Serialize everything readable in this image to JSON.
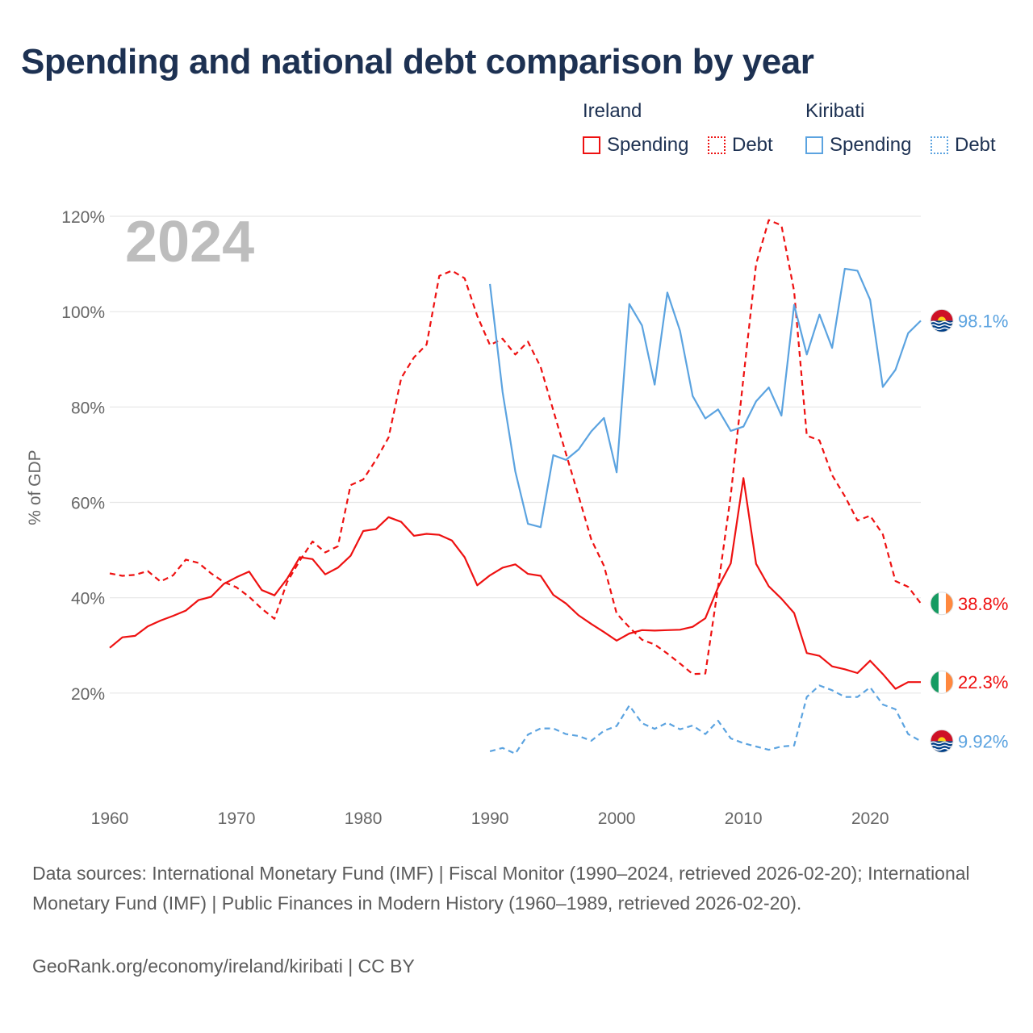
{
  "title": "Spending and national debt comparison by year",
  "legend": {
    "groups": [
      {
        "country": "Ireland",
        "items": [
          {
            "label": "Spending",
            "style": "solid",
            "color": "#ee1111"
          },
          {
            "label": "Debt",
            "style": "dotted",
            "color": "#ee1111"
          }
        ]
      },
      {
        "country": "Kiribati",
        "items": [
          {
            "label": "Spending",
            "style": "solid",
            "color": "#5ba3e0"
          },
          {
            "label": "Debt",
            "style": "dotted",
            "color": "#5ba3e0"
          }
        ]
      }
    ]
  },
  "sources": "Data sources: International Monetary Fund (IMF) | Fiscal Monitor (1990–2024, retrieved 2026-02-20); International Monetary Fund (IMF) | Public Finances in Modern History (1960–1989, retrieved 2026-02-20).",
  "credit": "GeoRank.org/economy/ireland/kiribati | CC BY",
  "colors": {
    "ireland": "#ee1111",
    "kiribati": "#5ba3e0",
    "grid": "#e6e6e6",
    "axis_text": "#666666"
  },
  "chart_data": {
    "type": "line",
    "title": "Spending and national debt comparison by year",
    "year_label": "2024",
    "ylabel": "% of GDP",
    "xlabel": "",
    "xlim": [
      1960,
      2024
    ],
    "ylim": [
      0,
      120
    ],
    "xticks": [
      1960,
      1970,
      1980,
      1990,
      2000,
      2010,
      2020
    ],
    "yticks": [
      20,
      40,
      60,
      80,
      100,
      120
    ],
    "ytick_labels": [
      "20%",
      "40%",
      "60%",
      "80%",
      "100%",
      "120%"
    ],
    "grid": true,
    "series": [
      {
        "name": "Ireland Spending",
        "country": "Ireland",
        "metric": "Spending",
        "color": "#ee1111",
        "dash": "solid",
        "end_label": "22.3%",
        "flag": "ireland",
        "x": [
          1960,
          1961,
          1962,
          1963,
          1964,
          1965,
          1966,
          1967,
          1968,
          1969,
          1970,
          1971,
          1972,
          1973,
          1974,
          1975,
          1976,
          1977,
          1978,
          1979,
          1980,
          1981,
          1982,
          1983,
          1984,
          1985,
          1986,
          1987,
          1988,
          1989,
          1990,
          1991,
          1992,
          1993,
          1994,
          1995,
          1996,
          1997,
          1998,
          1999,
          2000,
          2001,
          2002,
          2003,
          2004,
          2005,
          2006,
          2007,
          2008,
          2009,
          2010,
          2011,
          2012,
          2013,
          2014,
          2015,
          2016,
          2017,
          2018,
          2019,
          2020,
          2021,
          2022,
          2023,
          2024
        ],
        "values": [
          29.5,
          31.7,
          32.0,
          34.0,
          35.2,
          36.2,
          37.3,
          39.5,
          40.2,
          42.9,
          44.3,
          45.5,
          41.6,
          40.5,
          44.0,
          48.5,
          48.1,
          44.9,
          46.3,
          48.8,
          54.0,
          54.4,
          56.9,
          55.9,
          53.0,
          53.4,
          53.2,
          52.0,
          48.5,
          42.6,
          44.7,
          46.3,
          47.0,
          45.0,
          44.6,
          40.6,
          38.8,
          36.3,
          34.5,
          32.8,
          31.0,
          32.5,
          33.2,
          33.1,
          33.2,
          33.3,
          33.9,
          35.7,
          42.2,
          47.2,
          65.1,
          47.1,
          42.4,
          39.8,
          36.8,
          28.4,
          27.8,
          25.6,
          25.0,
          24.2,
          26.8,
          24.0,
          20.9,
          22.3,
          22.3
        ]
      },
      {
        "name": "Ireland Debt",
        "country": "Ireland",
        "metric": "Debt",
        "color": "#ee1111",
        "dash": "dashed",
        "end_label": "38.8%",
        "flag": "ireland",
        "x": [
          1960,
          1961,
          1962,
          1963,
          1964,
          1965,
          1966,
          1967,
          1968,
          1969,
          1970,
          1971,
          1972,
          1973,
          1974,
          1975,
          1976,
          1977,
          1978,
          1979,
          1980,
          1981,
          1982,
          1983,
          1984,
          1985,
          1986,
          1987,
          1988,
          1989,
          1990,
          1991,
          1992,
          1993,
          1994,
          1995,
          1996,
          1997,
          1998,
          1999,
          2000,
          2001,
          2002,
          2003,
          2004,
          2005,
          2006,
          2007,
          2008,
          2009,
          2010,
          2011,
          2012,
          2013,
          2014,
          2015,
          2016,
          2017,
          2018,
          2019,
          2020,
          2021,
          2022,
          2023,
          2024
        ],
        "values": [
          45.1,
          44.6,
          44.8,
          45.6,
          43.4,
          44.7,
          48.0,
          47.3,
          45.1,
          43.3,
          42.2,
          40.2,
          37.7,
          35.6,
          43.3,
          47.8,
          51.8,
          49.5,
          50.8,
          63.6,
          64.8,
          68.9,
          73.6,
          86.1,
          90.4,
          93.1,
          107.5,
          108.6,
          107.0,
          99.1,
          93.0,
          94.3,
          91.0,
          93.7,
          88.4,
          79.3,
          70.2,
          61.3,
          52.2,
          46.7,
          36.7,
          33.8,
          31.2,
          30.2,
          28.3,
          26.2,
          24.0,
          24.1,
          42.3,
          61.5,
          86.1,
          110.0,
          119.2,
          118.1,
          104.3,
          74.0,
          73.0,
          65.7,
          61.3,
          56.2,
          57.2,
          53.3,
          43.5,
          42.3,
          38.8
        ]
      },
      {
        "name": "Kiribati Spending",
        "country": "Kiribati",
        "metric": "Spending",
        "color": "#5ba3e0",
        "dash": "solid",
        "end_label": "98.1%",
        "flag": "kiribati",
        "x": [
          1990,
          1991,
          1992,
          1993,
          1994,
          1995,
          1996,
          1997,
          1998,
          1999,
          2000,
          2001,
          2002,
          2003,
          2004,
          2005,
          2006,
          2007,
          2008,
          2009,
          2010,
          2011,
          2012,
          2013,
          2014,
          2015,
          2016,
          2017,
          2018,
          2019,
          2020,
          2021,
          2022,
          2023,
          2024
        ],
        "values": [
          105.8,
          83.1,
          66.5,
          55.5,
          54.8,
          69.9,
          68.9,
          71.1,
          74.9,
          77.7,
          66.3,
          101.6,
          97.1,
          84.7,
          104.0,
          96.0,
          82.3,
          77.6,
          79.5,
          75.0,
          75.9,
          81.2,
          84.1,
          78.2,
          101.4,
          91.0,
          99.4,
          92.4,
          109.0,
          108.6,
          102.5,
          84.2,
          87.8,
          95.5,
          98.1
        ]
      },
      {
        "name": "Kiribati Debt",
        "country": "Kiribati",
        "metric": "Debt",
        "color": "#5ba3e0",
        "dash": "dashed",
        "end_label": "9.92%",
        "flag": "kiribati",
        "x": [
          1990,
          1991,
          1992,
          1993,
          1994,
          1995,
          1996,
          1997,
          1998,
          1999,
          2000,
          2001,
          2002,
          2003,
          2004,
          2005,
          2006,
          2007,
          2008,
          2009,
          2010,
          2011,
          2012,
          2013,
          2014,
          2015,
          2016,
          2017,
          2018,
          2019,
          2020,
          2021,
          2022,
          2023,
          2024
        ],
        "values": [
          7.8,
          8.5,
          7.3,
          11.3,
          12.6,
          12.6,
          11.4,
          11.0,
          10.0,
          12.1,
          13.1,
          17.4,
          13.7,
          12.5,
          13.8,
          12.4,
          13.2,
          11.4,
          14.2,
          10.5,
          9.5,
          8.8,
          8.1,
          8.8,
          9.0,
          19.2,
          21.6,
          20.6,
          19.2,
          19.2,
          21.2,
          17.6,
          16.6,
          11.4,
          9.92
        ]
      }
    ]
  }
}
